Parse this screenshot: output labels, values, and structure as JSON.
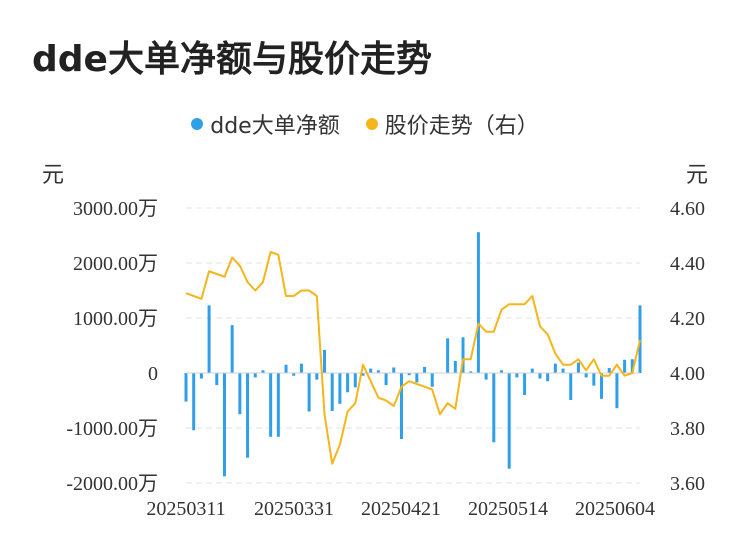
{
  "title": "dde大单净额与股价走势",
  "legend": {
    "items": [
      {
        "label": "dde大单净额",
        "color": "#2f9fea"
      },
      {
        "label": "股价走势（右）",
        "color": "#f5b51b"
      }
    ]
  },
  "axes": {
    "left_unit": "元",
    "right_unit": "元"
  },
  "chart_data": {
    "type": "bar+line",
    "title": "dde大单净额与股价走势",
    "x_ticks": [
      "20250311",
      "20250331",
      "20250421",
      "20250514",
      "20250604"
    ],
    "left_axis": {
      "unit": "元",
      "ylim": [
        -2000,
        3000
      ],
      "ticks": [
        3000,
        2000,
        1000,
        0,
        -1000,
        -2000
      ],
      "tick_labels": [
        "3000.00万",
        "2000.00万",
        "1000.00万",
        "0",
        "-1000.00万",
        "-2000.00万"
      ]
    },
    "right_axis": {
      "unit": "元",
      "ylim": [
        3.6,
        4.6
      ],
      "ticks": [
        4.6,
        4.4,
        4.2,
        4.0,
        3.8,
        3.6
      ],
      "tick_labels": [
        "4.60",
        "4.40",
        "4.20",
        "4.00",
        "3.80",
        "3.60"
      ]
    },
    "grid": true,
    "legend_position": "top-center",
    "series": [
      {
        "name": "dde大单净额",
        "type": "bar",
        "axis": "left",
        "color": "#2f9fea",
        "values": [
          -520,
          -1040,
          -100,
          1230,
          -220,
          -1880,
          870,
          -750,
          -1540,
          -80,
          50,
          -1160,
          -1160,
          150,
          -50,
          170,
          -700,
          -120,
          420,
          -690,
          -560,
          -350,
          -260,
          -50,
          80,
          50,
          -220,
          100,
          -1200,
          -40,
          -170,
          110,
          -250,
          10,
          630,
          220,
          650,
          30,
          2560,
          -120,
          -1260,
          50,
          -1740,
          -80,
          -400,
          80,
          -100,
          -150,
          170,
          80,
          -490,
          190,
          -80,
          -230,
          -470,
          90,
          -640,
          240,
          250,
          1230
        ]
      },
      {
        "name": "股价走势（右）",
        "type": "line",
        "axis": "right",
        "color": "#f5b51b",
        "values": [
          4.29,
          4.28,
          4.27,
          4.37,
          4.36,
          4.35,
          4.42,
          4.39,
          4.33,
          4.3,
          4.33,
          4.44,
          4.43,
          4.28,
          4.28,
          4.3,
          4.3,
          4.28,
          3.85,
          3.67,
          3.74,
          3.86,
          3.89,
          4.03,
          3.97,
          3.91,
          3.9,
          3.88,
          3.95,
          3.97,
          3.96,
          3.95,
          3.94,
          3.85,
          3.89,
          3.87,
          4.05,
          4.05,
          4.18,
          4.15,
          4.15,
          4.23,
          4.25,
          4.25,
          4.25,
          4.28,
          4.17,
          4.14,
          4.07,
          4.03,
          4.03,
          4.05,
          4.01,
          4.05,
          3.99,
          3.99,
          4.03,
          3.99,
          4.0,
          4.12
        ]
      }
    ]
  }
}
